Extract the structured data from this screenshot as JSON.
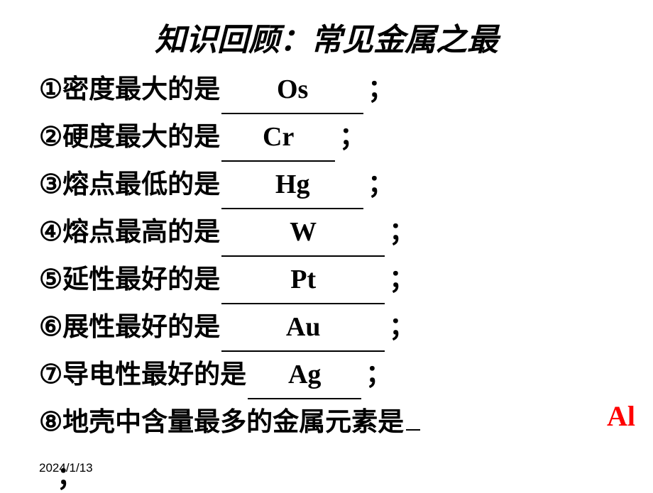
{
  "title": "知识回顾：常见金属之最",
  "lines": [
    {
      "num": "①",
      "label": "密度最大的是",
      "answer": "Os",
      "suffix": "；",
      "blank_class": "blank"
    },
    {
      "num": "②",
      "label": "硬度最大的是",
      "answer": "Cr",
      "suffix": "；",
      "blank_class": "blank blank-narrow"
    },
    {
      "num": "③",
      "label": "熔点最低的是",
      "answer": "Hg",
      "suffix": "；",
      "blank_class": "blank"
    },
    {
      "num": "④",
      "label": "熔点最高的是",
      "answer": "W",
      "suffix": "；",
      "blank_class": "blank blank-wide"
    },
    {
      "num": "⑤",
      "label": "延性最好的是",
      "answer": "Pt",
      "suffix": "；",
      "blank_class": "blank blank-wide"
    },
    {
      "num": "⑥",
      "label": "展性最好的是",
      "answer": "Au",
      "suffix": "；",
      "blank_class": "blank blank-wide"
    },
    {
      "num": "⑦",
      "label": "导电性最好的是",
      "answer": "Ag",
      "suffix": "；",
      "blank_class": "blank blank-narrow"
    }
  ],
  "line8": {
    "num": "⑧",
    "label": "地壳中含量最多的金属元素是"
  },
  "answer_al": "Al",
  "date": "2024/1/13",
  "trailing": "；",
  "colors": {
    "text": "#000000",
    "answer_al": "#ff0000",
    "background": "#ffffff"
  },
  "typography": {
    "title_fontsize": 44,
    "line_fontsize": 37,
    "answer_fontsize": 38,
    "date_fontsize": 17,
    "title_style": "bold italic",
    "line_weight": "bold"
  }
}
